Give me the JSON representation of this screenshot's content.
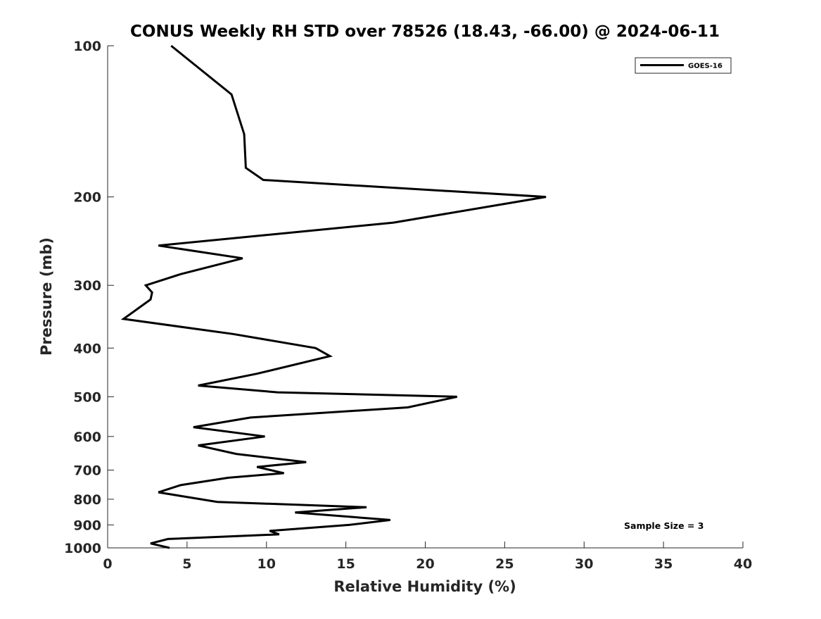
{
  "chart_data": {
    "type": "line",
    "title": "CONUS Weekly RH STD over 78526 (18.43, -66.00) @ 2024-06-11",
    "xlabel": "Relative Humidity (%)",
    "ylabel": "Pressure (mb)",
    "xlim": [
      0,
      40
    ],
    "ylim": [
      100,
      1000
    ],
    "yscale": "log",
    "y_reversed": true,
    "xticks": [
      0,
      5,
      10,
      15,
      20,
      25,
      30,
      35,
      40
    ],
    "xtick_labels": [
      "0",
      "5",
      "10",
      "15",
      "20",
      "25",
      "30",
      "35",
      "40"
    ],
    "yticks": [
      100,
      200,
      300,
      400,
      500,
      600,
      700,
      800,
      900,
      1000
    ],
    "ytick_labels": [
      "100",
      "200",
      "300",
      "400",
      "500",
      "600",
      "700",
      "800",
      "900",
      "1000"
    ],
    "grid": false,
    "legend": {
      "position": "top-right",
      "entries": [
        "GOES-16"
      ]
    },
    "annotations": [
      {
        "text": "Sample Size = 3",
        "position": "bottom-right"
      }
    ],
    "series": [
      {
        "name": "GOES-16",
        "color": "#000000",
        "x": [
          4.0,
          7.8,
          8.6,
          8.7,
          9.8,
          27.6,
          18.0,
          3.2,
          8.5,
          4.6,
          2.4,
          2.8,
          2.7,
          1.0,
          7.9,
          13.1,
          14.0,
          9.4,
          5.7,
          10.7,
          22.0,
          18.9,
          9.0,
          5.4,
          9.9,
          5.7,
          8.1,
          12.5,
          9.4,
          11.1,
          7.6,
          4.6,
          3.2,
          4.8,
          6.9,
          16.3,
          11.8,
          17.8,
          15.2,
          10.2,
          10.8,
          3.8,
          2.7,
          3.9
        ],
        "y": [
          100,
          125,
          150,
          175,
          185,
          200,
          225,
          250,
          265,
          285,
          300,
          310,
          320,
          350,
          375,
          400,
          415,
          450,
          475,
          490,
          500,
          525,
          550,
          575,
          600,
          625,
          650,
          675,
          690,
          710,
          725,
          750,
          775,
          790,
          810,
          830,
          850,
          880,
          900,
          925,
          940,
          960,
          980,
          1000
        ]
      }
    ]
  }
}
